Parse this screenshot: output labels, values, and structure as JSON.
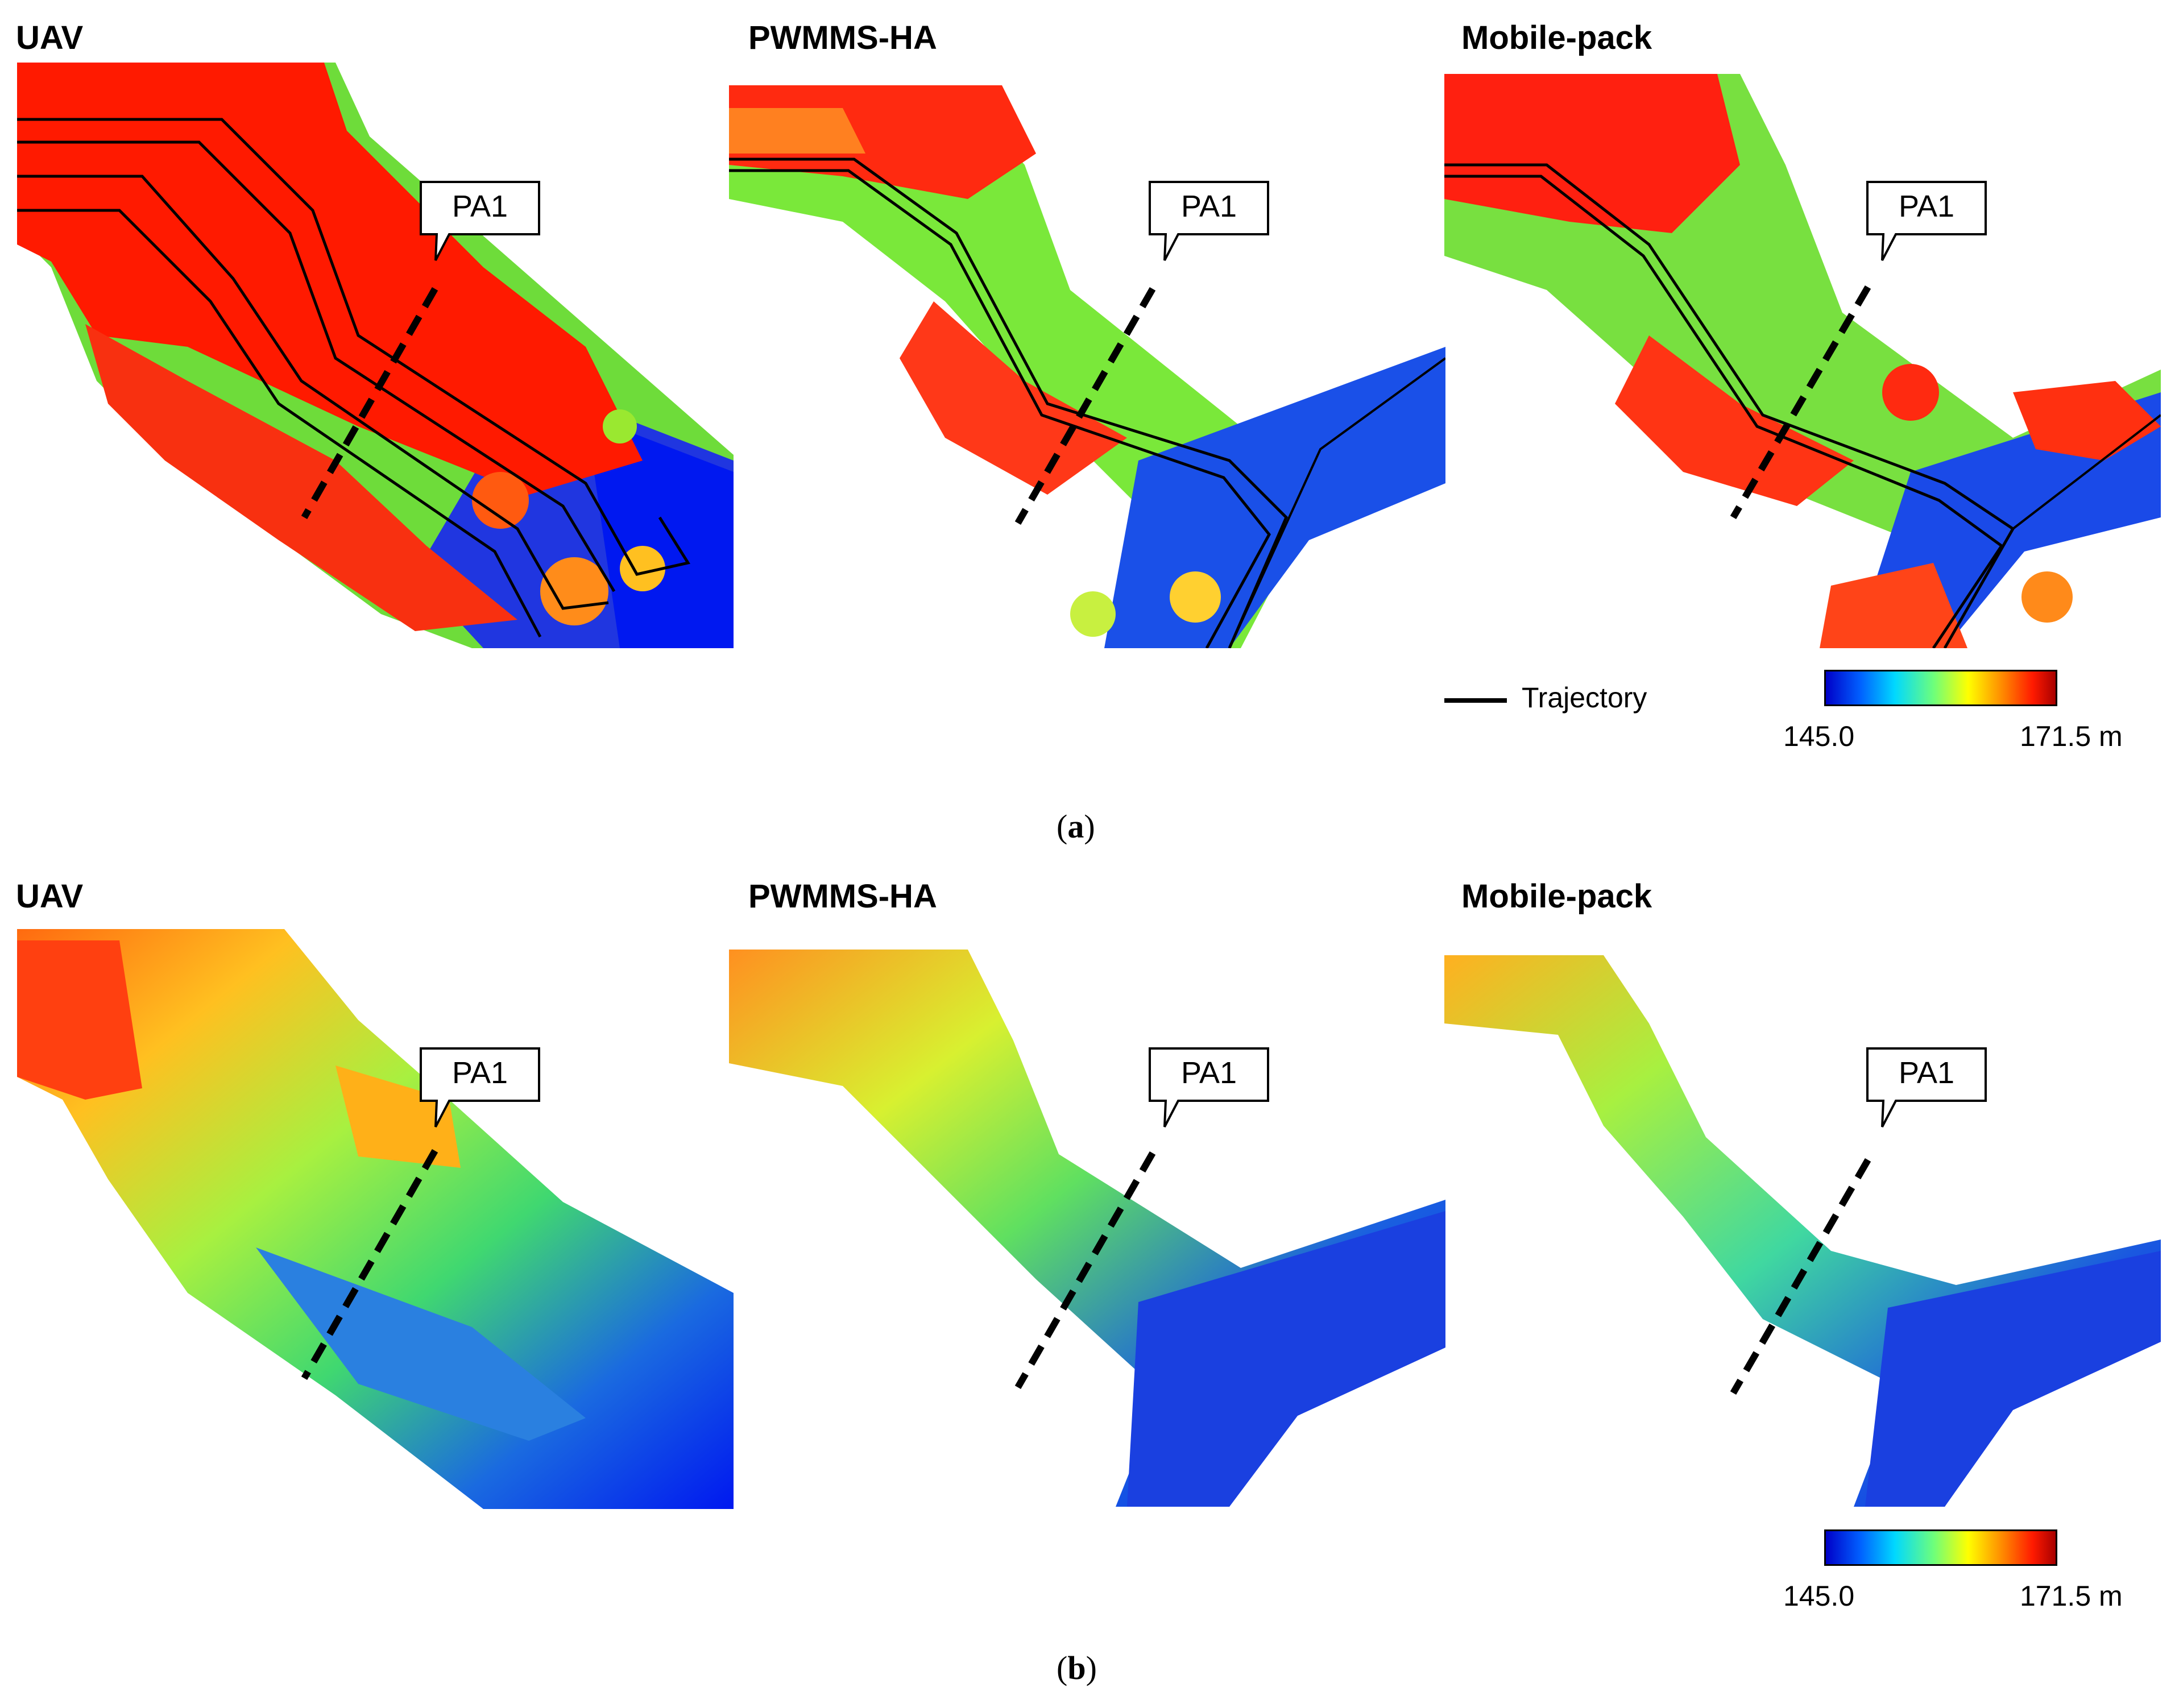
{
  "panels_top": {
    "uav_title": "UAV",
    "pwmms_title": "PWMMS-HA",
    "mobile_title": "Mobile-pack",
    "callout": "PA1",
    "caption_open": "(",
    "caption_letter": "a",
    "caption_close": ")"
  },
  "panels_bottom": {
    "uav_title": "UAV",
    "pwmms_title": "PWMMS-HA",
    "mobile_title": "Mobile-pack",
    "callout": "PA1",
    "caption_open": "(",
    "caption_letter": "b",
    "caption_close": ")"
  },
  "legend": {
    "trajectory_label": "Trajectory",
    "trajectory_color": "#000000"
  },
  "colorbar": {
    "min_label": "145.0",
    "max_label": "171.5 m",
    "min_value": 145.0,
    "max_value": 171.5,
    "colormap": "jet",
    "unit": "m"
  },
  "colors": {
    "high": "#ff1a00",
    "mid": "#6eff3a",
    "low": "#0030ff",
    "profile_line": "#000000"
  }
}
